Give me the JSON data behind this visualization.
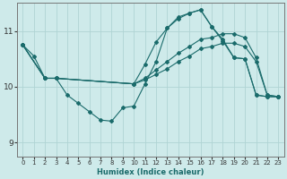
{
  "xlabel": "Humidex (Indice chaleur)",
  "bg_color": "#ceeaea",
  "grid_color": "#b0d4d4",
  "line_color": "#1a6b6b",
  "spine_color": "#777777",
  "xlim": [
    -0.5,
    23.5
  ],
  "ylim": [
    8.75,
    11.5
  ],
  "yticks": [
    9,
    10,
    11
  ],
  "xticks": [
    0,
    1,
    2,
    3,
    4,
    5,
    6,
    7,
    8,
    9,
    10,
    11,
    12,
    13,
    14,
    15,
    16,
    17,
    18,
    19,
    20,
    21,
    22,
    23
  ],
  "lines": [
    {
      "x": [
        0,
        1,
        2,
        3,
        4,
        5,
        6,
        7,
        8,
        9,
        10,
        11,
        12,
        13,
        14,
        15,
        16,
        17,
        18,
        19,
        20,
        21,
        22,
        23
      ],
      "y": [
        10.75,
        10.55,
        10.15,
        10.15,
        9.85,
        9.7,
        9.55,
        9.4,
        9.38,
        9.62,
        9.65,
        10.05,
        10.45,
        11.05,
        11.25,
        11.32,
        11.38,
        11.08,
        10.82,
        10.52,
        10.5,
        9.85,
        9.82,
        9.82
      ]
    },
    {
      "x": [
        0,
        2,
        3,
        10,
        11,
        12,
        13,
        14,
        15,
        16,
        17,
        18,
        19,
        20,
        21,
        22,
        23
      ],
      "y": [
        10.75,
        10.15,
        10.15,
        10.05,
        10.12,
        10.22,
        10.32,
        10.45,
        10.55,
        10.68,
        10.72,
        10.78,
        10.78,
        10.72,
        10.45,
        9.85,
        9.82
      ]
    },
    {
      "x": [
        0,
        2,
        3,
        10,
        11,
        12,
        13,
        14,
        15,
        16,
        17,
        18,
        19,
        20,
        21,
        22,
        23
      ],
      "y": [
        10.75,
        10.15,
        10.15,
        10.05,
        10.15,
        10.3,
        10.45,
        10.6,
        10.72,
        10.85,
        10.88,
        10.95,
        10.95,
        10.88,
        10.52,
        9.85,
        9.82
      ]
    },
    {
      "x": [
        0,
        2,
        3,
        10,
        11,
        12,
        13,
        14,
        15,
        16,
        17,
        18,
        19,
        20,
        21,
        22,
        23
      ],
      "y": [
        10.75,
        10.15,
        10.15,
        10.05,
        10.4,
        10.8,
        11.05,
        11.22,
        11.32,
        11.38,
        11.08,
        10.85,
        10.52,
        10.5,
        9.85,
        9.82,
        9.82
      ]
    }
  ]
}
